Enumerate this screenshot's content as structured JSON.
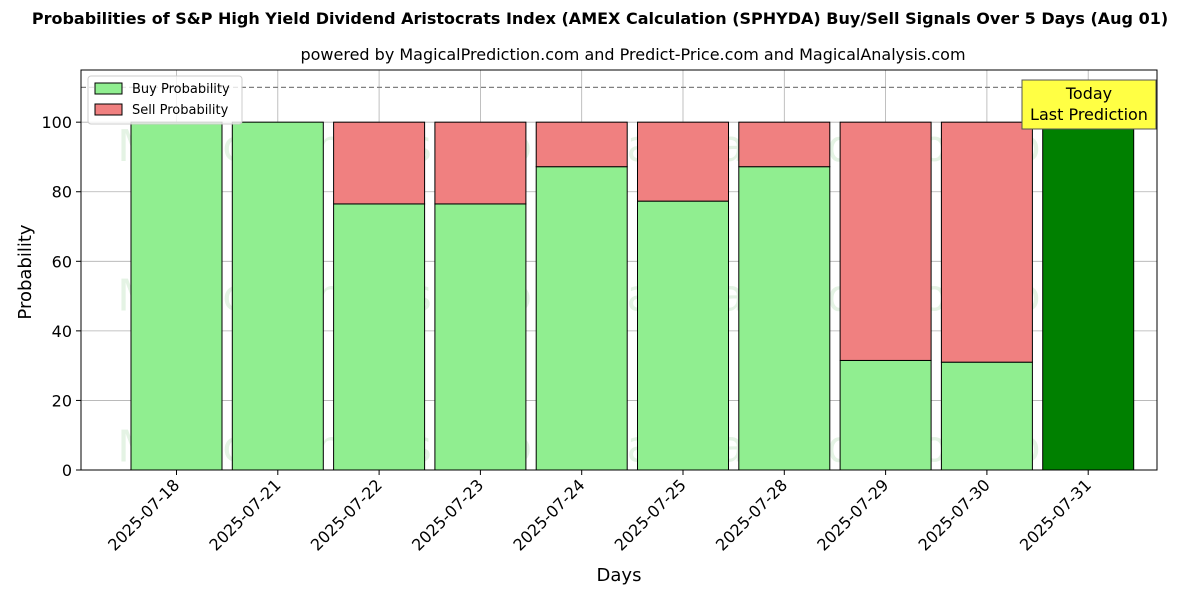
{
  "chart_data": {
    "type": "bar",
    "stacked": true,
    "title": "Probabilities of S&P High Yield Dividend Aristocrats Index (AMEX Calculation (SPHYDA) Buy/Sell Signals Over 5 Days (Aug 01)",
    "subtitle": "powered by MagicalPrediction.com and Predict-Price.com and MagicalAnalysis.com",
    "xlabel": "Days",
    "ylabel": "Probability",
    "ylim": [
      0,
      115
    ],
    "yticks": [
      0,
      20,
      40,
      60,
      80,
      100
    ],
    "reference_line": 110,
    "grid": true,
    "legend_position": "top-left",
    "categories": [
      "2025-07-18",
      "2025-07-21",
      "2025-07-22",
      "2025-07-23",
      "2025-07-24",
      "2025-07-25",
      "2025-07-28",
      "2025-07-29",
      "2025-07-30",
      "2025-07-31"
    ],
    "series": [
      {
        "name": "Buy Probability",
        "color": "#90ee90",
        "values": [
          100,
          100,
          76.5,
          76.5,
          87.2,
          77.3,
          87.2,
          31.5,
          31,
          100
        ]
      },
      {
        "name": "Sell Probability",
        "color": "#f08080",
        "values": [
          0,
          0,
          23.5,
          23.5,
          12.8,
          22.7,
          12.8,
          68.5,
          69,
          0
        ]
      }
    ],
    "highlight": {
      "category": "2025-07-31",
      "color": "#008000",
      "label_line1": "Today",
      "label_line2": "Last Prediction",
      "label_color": "#ffff44"
    },
    "watermarks": [
      "MagicalAnalysis.com",
      "MagicalPrediction.com"
    ]
  }
}
